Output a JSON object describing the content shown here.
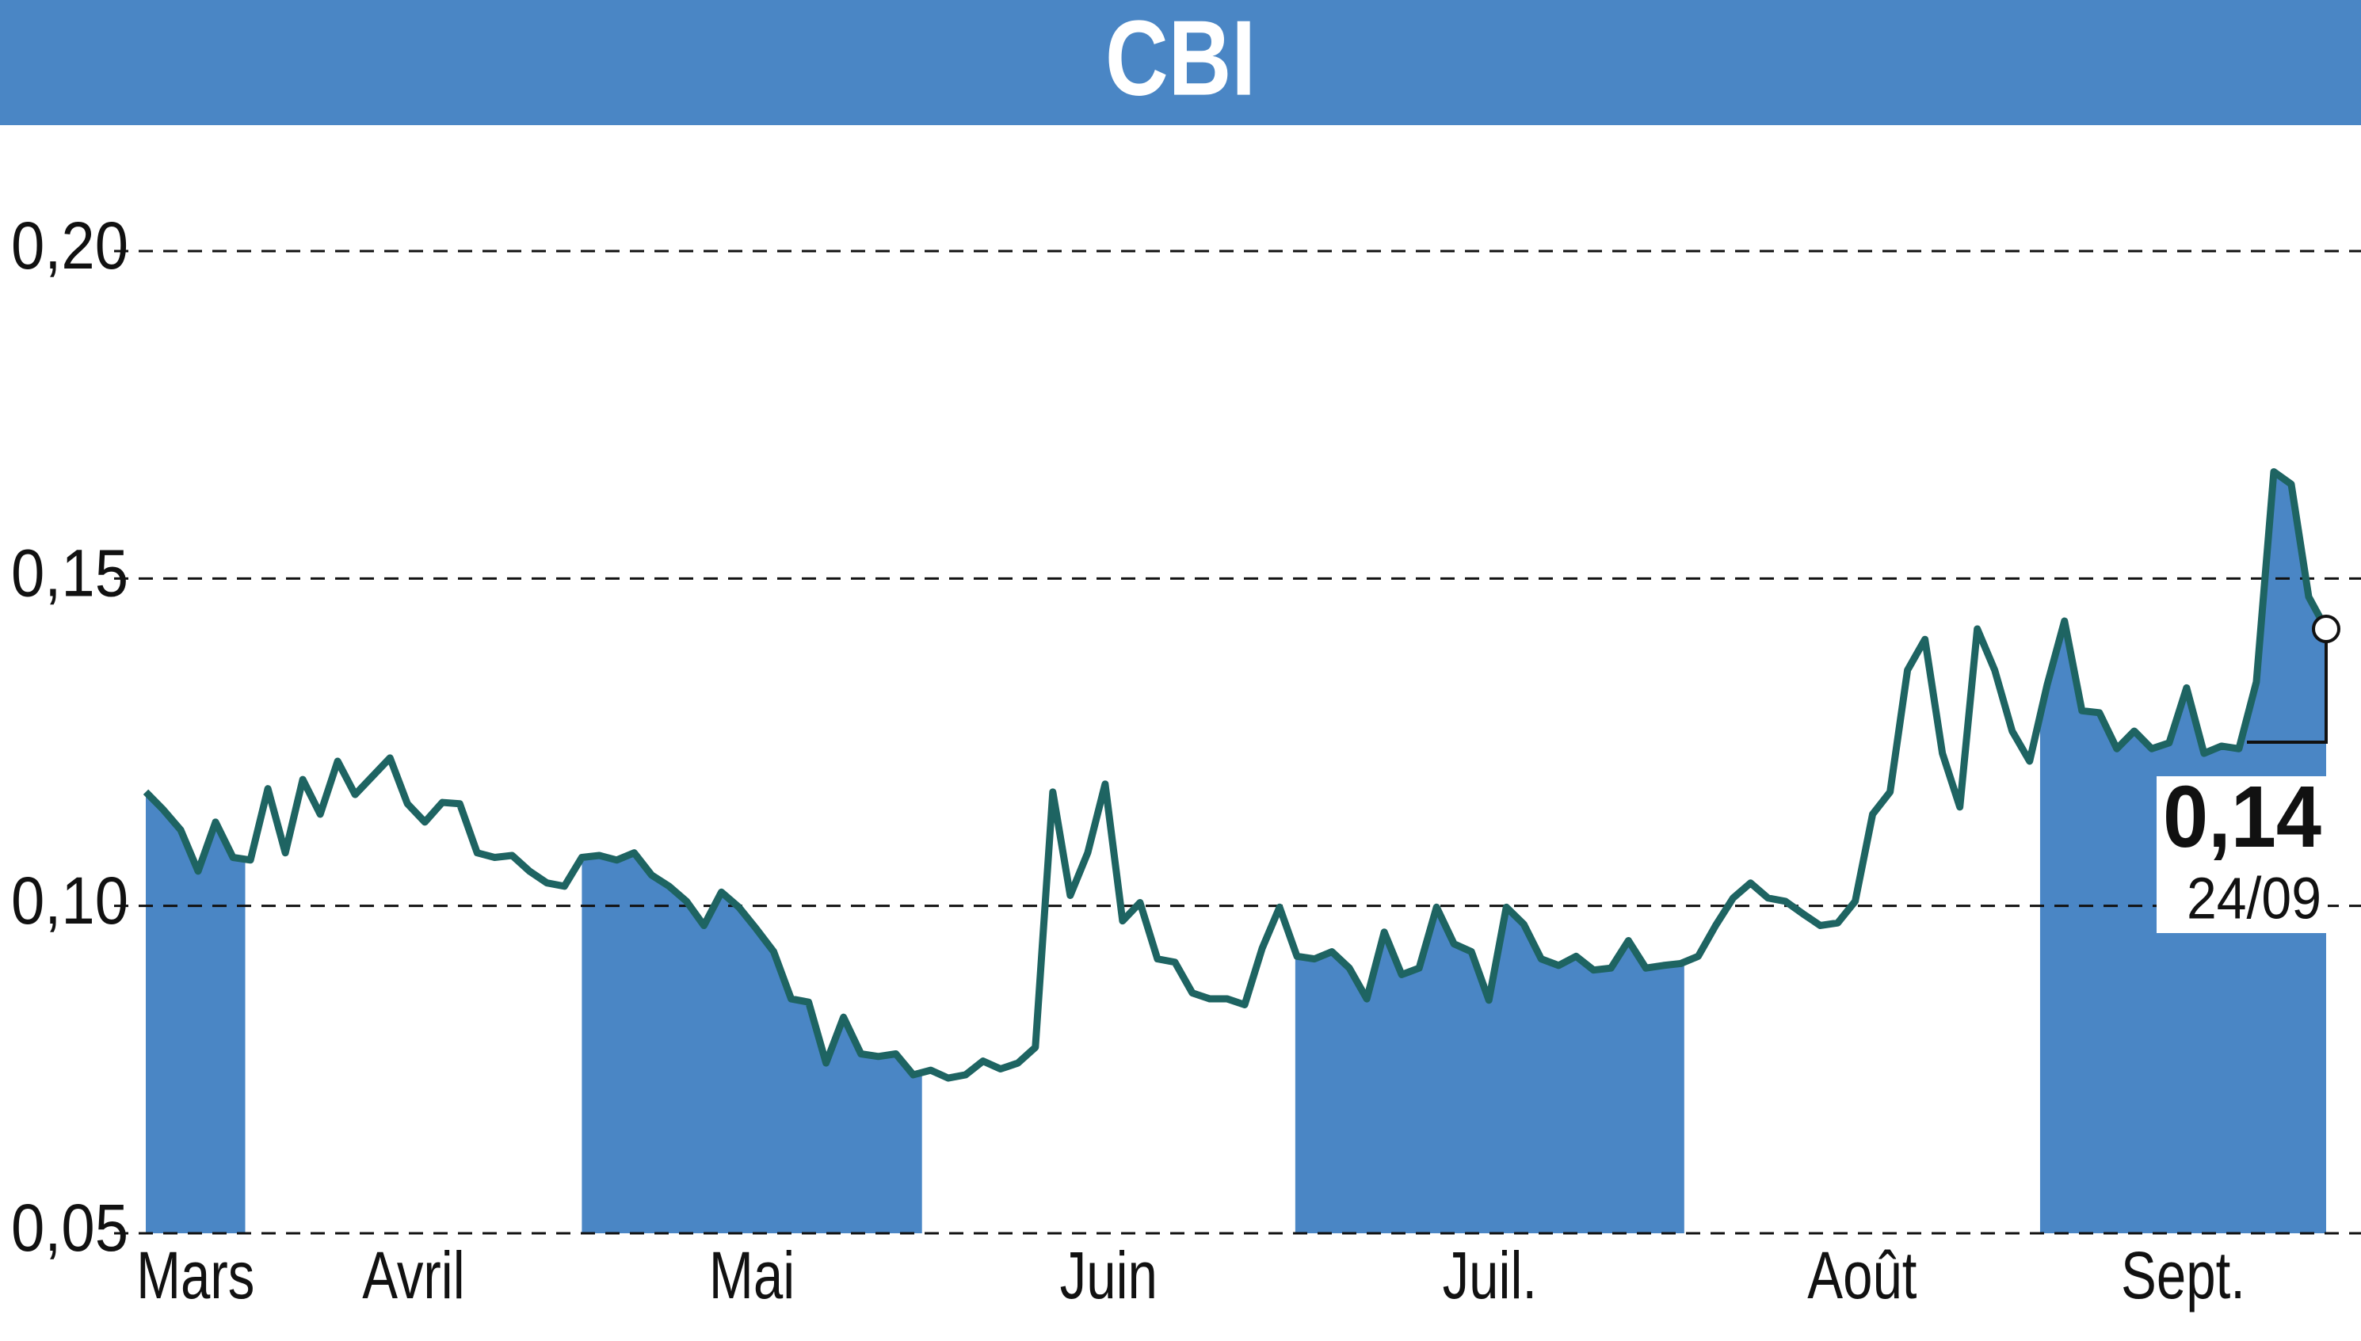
{
  "chart_data": {
    "type": "line",
    "title": "CBI",
    "series": [
      {
        "color": "#1e6462",
        "fill": "#4a86c5",
        "values": [
          0.1174,
          0.1147,
          0.1116,
          0.1053,
          0.1128,
          0.1074,
          0.107,
          0.1179,
          0.1081,
          0.1193,
          0.114,
          0.1221,
          0.117,
          0.1198,
          0.1226,
          0.1156,
          0.1128,
          0.1158,
          0.1156,
          0.1081,
          0.1074,
          0.1077,
          0.1053,
          0.1035,
          0.103,
          0.1074,
          0.1077,
          0.107,
          0.1081,
          0.1047,
          0.103,
          0.1007,
          0.097,
          0.1021,
          0.0998,
          0.0965,
          0.093,
          0.0858,
          0.0853,
          0.076,
          0.083,
          0.0774,
          0.077,
          0.0774,
          0.0742,
          0.0749,
          0.0737,
          0.0742,
          0.0763,
          0.0751,
          0.076,
          0.0784,
          0.1174,
          0.1016,
          0.1081,
          0.1186,
          0.0977,
          0.1005,
          0.0919,
          0.0914,
          0.0867,
          0.0858,
          0.0858,
          0.0849,
          0.0935,
          0.0998,
          0.0923,
          0.0919,
          0.093,
          0.0905,
          0.0858,
          0.096,
          0.0895,
          0.0905,
          0.0998,
          0.0942,
          0.093,
          0.0856,
          0.0998,
          0.0972,
          0.0919,
          0.0909,
          0.0923,
          0.0902,
          0.0905,
          0.0947,
          0.0905,
          0.0909,
          0.0912,
          0.0923,
          0.097,
          0.1012,
          0.1035,
          0.1012,
          0.1007,
          0.0988,
          0.097,
          0.0974,
          0.1007,
          0.114,
          0.1174,
          0.136,
          0.1407,
          0.1233,
          0.1151,
          0.1423,
          0.136,
          0.1267,
          0.1221,
          0.1337,
          0.1435,
          0.1298,
          0.1295,
          0.124,
          0.1267,
          0.124,
          0.1249,
          0.1333,
          0.1233,
          0.1244,
          0.124,
          0.1342,
          0.1663,
          0.1644,
          0.1472,
          0.1423
        ]
      }
    ],
    "last_value_label": "0,14",
    "last_date": "24/09",
    "xlim": [
      0,
      125
    ],
    "xticks": [
      {
        "value": 0,
        "label": "Mars"
      },
      {
        "value": 5.7,
        "label": "Avril"
      },
      {
        "value": 25.0,
        "label": "Mai"
      },
      {
        "value": 44.5,
        "label": "Juin"
      },
      {
        "value": 65.9,
        "label": "Juil."
      },
      {
        "value": 88.2,
        "label": "Août"
      },
      {
        "value": 108.6,
        "label": "Sept."
      }
    ],
    "ylim": [
      0.05,
      0.2
    ],
    "yticks": [
      {
        "value": 0.05,
        "label": "0,05"
      },
      {
        "value": 0.1,
        "label": "0,10"
      },
      {
        "value": 0.15,
        "label": "0,15"
      },
      {
        "value": 0.2,
        "label": "0,20"
      }
    ],
    "grid": true,
    "shade_alternate_months": true
  }
}
